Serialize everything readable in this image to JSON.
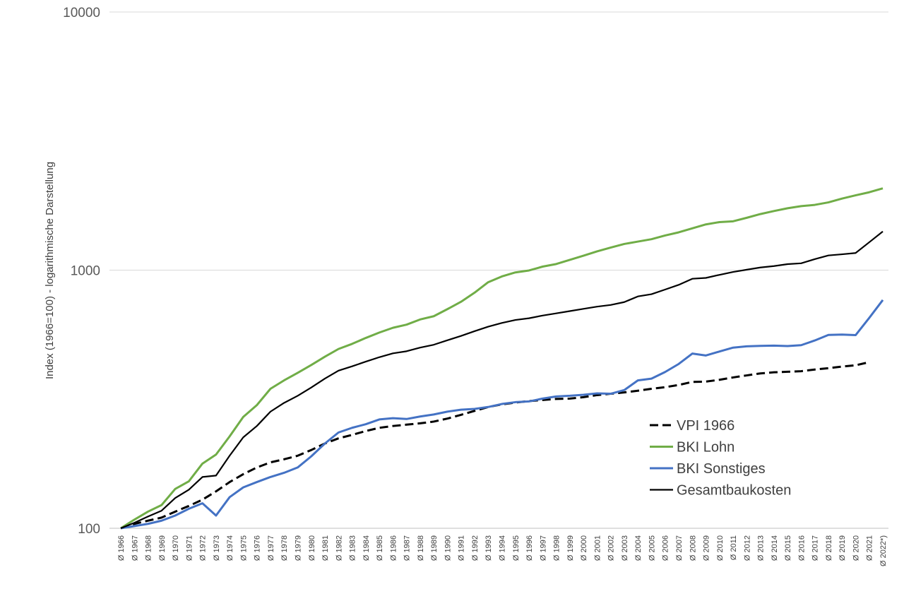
{
  "chart_data": {
    "type": "line",
    "ylabel": "Index (1966=100) - logarithmische Darstellung",
    "yscale": "log",
    "ylim": [
      100,
      10000
    ],
    "yticks": [
      "100",
      "1000",
      "10000"
    ],
    "grid": true,
    "legend_position": "bottom-right",
    "x": [
      "Ø 1966",
      "Ø 1967",
      "Ø 1968",
      "Ø 1969",
      "Ø 1970",
      "Ø 1971",
      "Ø 1972",
      "Ø 1973",
      "Ø 1974",
      "Ø 1975",
      "Ø 1976",
      "Ø 1977",
      "Ø 1978",
      "Ø 1979",
      "Ø 1980",
      "Ø 1981",
      "Ø 1982",
      "Ø 1983",
      "Ø 1984",
      "Ø 1985",
      "Ø 1986",
      "Ø 1987",
      "Ø 1988",
      "Ø 1989",
      "Ø 1990",
      "Ø 1991",
      "Ø 1992",
      "Ø 1993",
      "Ø 1994",
      "Ø 1995",
      "Ø 1996",
      "Ø 1997",
      "Ø 1998",
      "Ø 1999",
      "Ø 2000",
      "Ø 2001",
      "Ø 2002",
      "Ø 2003",
      "Ø 2004",
      "Ø 2005",
      "Ø 2006",
      "Ø 2007",
      "Ø 2008",
      "Ø 2009",
      "Ø 2010",
      "Ø 2011",
      "Ø 2012",
      "Ø 2013",
      "Ø 2014",
      "Ø 2015",
      "Ø 2016",
      "Ø 2017",
      "Ø 2018",
      "Ø 2019",
      "Ø 2020",
      "Ø 2021",
      "Ø 2022*)"
    ],
    "series": [
      {
        "name": "VPI 1966",
        "color": "#000000",
        "dash": true,
        "values": [
          100,
          104,
          107,
          110,
          116,
          122,
          129,
          139,
          151,
          162,
          172,
          180,
          185,
          191,
          201,
          213,
          223,
          230,
          238,
          245,
          249,
          252,
          255,
          259,
          266,
          275,
          285,
          295,
          302,
          307,
          311,
          314,
          317,
          318,
          322,
          328,
          332,
          336,
          341,
          347,
          352,
          359,
          369,
          370,
          376,
          384,
          391,
          398,
          402,
          404,
          406,
          412,
          417,
          423,
          428,
          440,
          null
        ]
      },
      {
        "name": "BKI Lohn",
        "color": "#70ad47",
        "dash": false,
        "values": [
          100,
          108,
          116,
          123,
          142,
          152,
          178,
          193,
          227,
          270,
          300,
          347,
          374,
          400,
          429,
          462,
          495,
          518,
          546,
          573,
          598,
          615,
          644,
          663,
          706,
          754,
          818,
          898,
          945,
          980,
          997,
          1032,
          1056,
          1096,
          1137,
          1182,
          1223,
          1263,
          1290,
          1318,
          1362,
          1401,
          1452,
          1504,
          1535,
          1546,
          1595,
          1649,
          1694,
          1737,
          1770,
          1790,
          1830,
          1893,
          1949,
          2003,
          2075
        ]
      },
      {
        "name": "BKI Sonstiges",
        "color": "#4472c4",
        "dash": false,
        "values": [
          100,
          102,
          104,
          107,
          112,
          119,
          125,
          112,
          132,
          144,
          151,
          158,
          164,
          172,
          190,
          213,
          235,
          245,
          253,
          264,
          267,
          265,
          271,
          276,
          283,
          288,
          290,
          295,
          303,
          308,
          310,
          318,
          324,
          326,
          329,
          333,
          332,
          343,
          374,
          380,
          403,
          433,
          475,
          467,
          484,
          501,
          507,
          509,
          510,
          508,
          512,
          534,
          561,
          563,
          560,
          653,
          766
        ]
      },
      {
        "name": "Gesamtbaukosten",
        "color": "#000000",
        "dash": false,
        "values": [
          100,
          105,
          111,
          117,
          131,
          141,
          158,
          160,
          191,
          225,
          249,
          283,
          306,
          326,
          351,
          380,
          408,
          424,
          442,
          460,
          476,
          485,
          501,
          514,
          535,
          556,
          580,
          604,
          624,
          641,
          651,
          667,
          680,
          694,
          708,
          722,
          733,
          752,
          791,
          807,
          841,
          877,
          926,
          933,
          959,
          984,
          1004,
          1024,
          1037,
          1055,
          1063,
          1103,
          1140,
          1152,
          1165,
          1282,
          1412
        ]
      }
    ]
  }
}
